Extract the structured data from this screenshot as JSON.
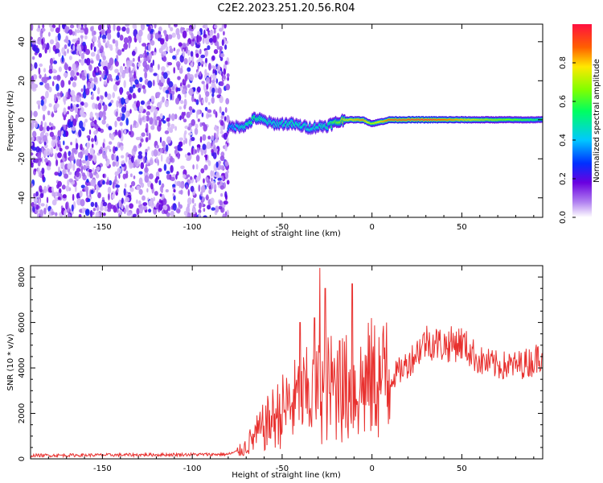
{
  "title": "C2E2.2023.251.20.56.R04",
  "colors": {
    "snr_line": "#e8302e",
    "axis": "#000000",
    "background": "#ffffff"
  },
  "chart_data": [
    {
      "type": "heatmap",
      "xlabel": "Height of straight line (km)",
      "ylabel": "Frequency (Hz)",
      "xlim": [
        -190,
        95
      ],
      "ylim": [
        -50,
        49
      ],
      "xticks": [
        -150,
        -100,
        -50,
        0,
        50
      ],
      "yticks": [
        -40,
        -20,
        0,
        20,
        40
      ],
      "colorbar": {
        "label": "Normalized spectral amplitude",
        "range": [
          0.0,
          1.0
        ],
        "ticks": [
          0.0,
          0.2,
          0.4,
          0.6,
          0.8
        ],
        "colormap": [
          "#ffffff",
          "#b07ff0",
          "#6a00e0",
          "#0030ff",
          "#00c8ff",
          "#00ff60",
          "#80ff00",
          "#ffe800",
          "#ff6000",
          "#ff1040"
        ]
      },
      "description_of_regions": {
        "noise_region_x": [
          -190,
          -80
        ],
        "noise_amplitude_approx": 0.1,
        "signal_track_points": [
          {
            "x": -80,
            "freq": -4,
            "amp": 0.35
          },
          {
            "x": -70,
            "freq": -3,
            "amp": 0.5
          },
          {
            "x": -65,
            "freq": 1,
            "amp": 0.55
          },
          {
            "x": -55,
            "freq": -2,
            "amp": 0.45
          },
          {
            "x": -45,
            "freq": -2,
            "amp": 0.5
          },
          {
            "x": -35,
            "freq": -4,
            "amp": 0.45
          },
          {
            "x": -25,
            "freq": -3,
            "amp": 0.5
          },
          {
            "x": -15,
            "freq": 0,
            "amp": 0.75
          },
          {
            "x": -5,
            "freq": 0,
            "amp": 0.85
          },
          {
            "x": 0,
            "freq": -2,
            "amp": 0.7
          },
          {
            "x": 10,
            "freq": 0,
            "amp": 0.9
          },
          {
            "x": 30,
            "freq": 0,
            "amp": 0.95
          },
          {
            "x": 60,
            "freq": 0,
            "amp": 0.75
          },
          {
            "x": 95,
            "freq": 0,
            "amp": 0.55
          }
        ]
      }
    },
    {
      "type": "line",
      "xlabel": "Height of straight line (km)",
      "ylabel": "SNR (10 * v/v)",
      "xlim": [
        -190,
        95
      ],
      "ylim": [
        0,
        8500
      ],
      "xticks": [
        -150,
        -100,
        -50,
        0,
        50
      ],
      "yticks": [
        0,
        2000,
        4000,
        6000,
        8000
      ],
      "series": [
        {
          "envelope_points": [
            {
              "x": -190,
              "y": 150
            },
            {
              "x": -120,
              "y": 180
            },
            {
              "x": -80,
              "y": 200
            },
            {
              "x": -72,
              "y": 400
            },
            {
              "x": -65,
              "y": 1000
            },
            {
              "x": -55,
              "y": 1800
            },
            {
              "x": -45,
              "y": 2400
            },
            {
              "x": -35,
              "y": 2800
            },
            {
              "x": -28,
              "y": 3000
            },
            {
              "x": -20,
              "y": 3200
            },
            {
              "x": -10,
              "y": 3000
            },
            {
              "x": 0,
              "y": 3500
            },
            {
              "x": 10,
              "y": 3500
            },
            {
              "x": 20,
              "y": 4200
            },
            {
              "x": 30,
              "y": 5200
            },
            {
              "x": 40,
              "y": 5000
            },
            {
              "x": 50,
              "y": 5100
            },
            {
              "x": 60,
              "y": 4300
            },
            {
              "x": 70,
              "y": 4100
            },
            {
              "x": 80,
              "y": 4100
            },
            {
              "x": 90,
              "y": 4300
            },
            {
              "x": 95,
              "y": 4700
            }
          ],
          "notable_spikes": [
            {
              "x": -40,
              "y": 6000
            },
            {
              "x": -32,
              "y": 6200
            },
            {
              "x": -29,
              "y": 8400
            },
            {
              "x": -26,
              "y": 7500
            },
            {
              "x": -18,
              "y": 5200
            },
            {
              "x": -11,
              "y": 7700
            },
            {
              "x": 8,
              "y": 6000
            },
            {
              "x": 47,
              "y": 5600
            }
          ]
        }
      ]
    }
  ]
}
